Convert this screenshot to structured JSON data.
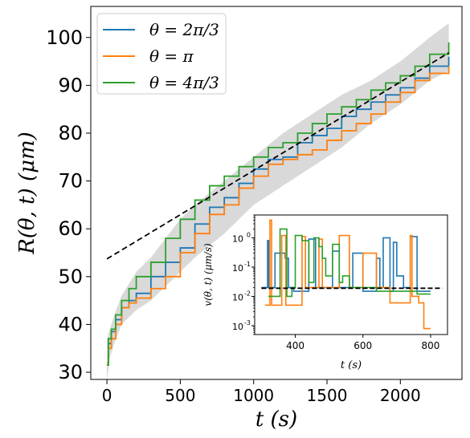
{
  "chart_data": [
    {
      "type": "line",
      "role": "main",
      "xlabel": "t   (s)",
      "ylabel": "R(θ, t)   (μm)",
      "xlim": [
        -110,
        2420
      ],
      "ylim": [
        28.5,
        106.5
      ],
      "xticks": [
        0,
        500,
        1000,
        1500,
        2000
      ],
      "yticks": [
        30,
        40,
        50,
        60,
        70,
        80,
        90,
        100
      ],
      "xtick_labels": [
        "0",
        "500",
        "1000",
        "1500",
        "2000"
      ],
      "ytick_labels": [
        "30",
        "40",
        "50",
        "60",
        "70",
        "80",
        "90",
        "100"
      ],
      "legend_position": "top-left",
      "grid": false,
      "band": {
        "color": "#d9d9d9",
        "x": [
          0,
          20,
          50,
          100,
          200,
          300,
          400,
          500,
          600,
          800,
          1000,
          1200,
          1400,
          1600,
          1800,
          2000,
          2200,
          2330
        ],
        "lower": [
          28,
          33,
          36,
          40,
          43,
          45,
          48,
          51,
          54,
          59,
          65,
          69,
          73,
          77,
          82,
          86,
          91,
          93
        ],
        "upper": [
          37,
          39,
          42,
          46,
          51,
          54,
          58,
          62,
          65,
          70,
          75,
          80,
          84,
          88,
          91,
          95,
          100,
          103
        ]
      },
      "reference_line": {
        "style": "dashed",
        "color": "#000000",
        "x": [
          0,
          2330
        ],
        "y": [
          53.7,
          96.8
        ]
      },
      "series": [
        {
          "name": "θ = 2π/3",
          "color": "#1f77b4",
          "x": [
            0,
            10,
            30,
            60,
            100,
            150,
            200,
            300,
            400,
            500,
            600,
            700,
            800,
            900,
            1000,
            1100,
            1200,
            1300,
            1400,
            1500,
            1600,
            1700,
            1800,
            1900,
            2000,
            2100,
            2200,
            2330
          ],
          "y": [
            31.5,
            36,
            38.5,
            41,
            43.5,
            45,
            46.5,
            50,
            53,
            56,
            61,
            64.5,
            66.5,
            69.5,
            72.5,
            74.5,
            75,
            78,
            79.5,
            81,
            83.5,
            85,
            86.5,
            88,
            89.5,
            91.5,
            94,
            96
          ]
        },
        {
          "name": "θ = π",
          "color": "#ff7f0e",
          "x": [
            0,
            10,
            30,
            60,
            100,
            150,
            200,
            300,
            400,
            500,
            600,
            700,
            800,
            900,
            1000,
            1100,
            1200,
            1300,
            1400,
            1500,
            1600,
            1700,
            1800,
            1900,
            2000,
            2100,
            2200,
            2330
          ],
          "y": [
            32,
            35,
            37,
            40,
            43.5,
            44.5,
            45.5,
            47.5,
            50,
            55,
            59,
            63,
            65,
            68.5,
            71,
            73.5,
            74.5,
            75.5,
            76.5,
            78.5,
            80.5,
            82,
            84,
            86.5,
            88.5,
            91,
            92.5,
            94
          ]
        },
        {
          "name": "θ = 4π/3",
          "color": "#2ca02c",
          "x": [
            0,
            10,
            30,
            60,
            100,
            150,
            200,
            300,
            400,
            500,
            600,
            700,
            800,
            900,
            1000,
            1100,
            1200,
            1300,
            1400,
            1500,
            1600,
            1700,
            1800,
            1900,
            2000,
            2100,
            2200,
            2330
          ],
          "y": [
            31.5,
            37,
            39,
            42,
            45,
            47.5,
            50,
            53,
            58,
            62,
            66,
            69,
            71,
            73,
            75,
            77,
            78,
            80,
            82,
            84,
            85.5,
            87,
            89,
            90.5,
            92,
            94,
            96.5,
            99
          ]
        }
      ]
    },
    {
      "type": "line",
      "role": "inset",
      "xlabel": "t   (s)",
      "ylabel": "v(θ, t)   (μm/s)",
      "log_y": true,
      "xlim": [
        280,
        850
      ],
      "ylim": [
        0.0005,
        6
      ],
      "xticks": [
        400,
        600,
        800
      ],
      "xtick_labels": [
        "400",
        "600",
        "800"
      ],
      "yticks": [
        0.001,
        0.01,
        0.1,
        1
      ],
      "ytick_labels": [
        "10",
        "10",
        "10",
        "10"
      ],
      "ytick_exponents": [
        "-3",
        "-2",
        "-1",
        "0"
      ],
      "reference_line": {
        "style": "dashed",
        "color": "#000000",
        "x": [
          300,
          835
        ],
        "y": [
          0.019,
          0.019
        ]
      },
      "series": [
        {
          "name": "θ = 2π/3",
          "color": "#1f77b4",
          "x": [
            300,
            318,
            322,
            330,
            340,
            370,
            380,
            395,
            420,
            440,
            460,
            470,
            500,
            510,
            530,
            560,
            570,
            600,
            620,
            640,
            650,
            660,
            680,
            690,
            700,
            720,
            740,
            760,
            780,
            800
          ],
          "y": [
            0.02,
            0.8,
            0.02,
            0.02,
            0.3,
            0.2,
            0.02,
            0.015,
            0.015,
            0.9,
            0.02,
            0.02,
            0.02,
            0.35,
            0.02,
            0.02,
            0.3,
            0.015,
            0.015,
            0.2,
            0.02,
            1.0,
            0.015,
            0.7,
            0.05,
            0.02,
            1.1,
            0.015,
            0.015,
            0.015
          ]
        },
        {
          "name": "θ = π",
          "color": "#ff7f0e",
          "x": [
            310,
            320,
            325,
            330,
            355,
            360,
            372,
            378,
            395,
            420,
            430,
            440,
            470,
            480,
            500,
            530,
            560,
            575,
            600,
            640,
            660,
            680,
            700,
            730,
            740,
            745,
            765,
            780,
            800
          ],
          "y": [
            0.005,
            0.005,
            4.0,
            0.005,
            0.005,
            1.2,
            0.005,
            0.005,
            0.005,
            1.1,
            0.02,
            0.02,
            0.9,
            0.02,
            0.02,
            1.2,
            0.02,
            0.02,
            0.3,
            0.02,
            0.02,
            0.006,
            0.006,
            0.006,
            1.2,
            0.01,
            0.006,
            0.0008,
            0.0008
          ]
        },
        {
          "name": "θ = 4π/3",
          "color": "#2ca02c",
          "x": [
            320,
            330,
            345,
            355,
            375,
            390,
            400,
            420,
            440,
            455,
            470,
            480,
            490,
            510,
            530,
            540,
            560,
            580,
            600,
            620,
            640,
            680,
            720,
            760,
            800
          ],
          "y": [
            0.01,
            0.01,
            0.01,
            2.0,
            0.01,
            0.02,
            1.2,
            0.8,
            0.03,
            1.0,
            0.5,
            0.2,
            0.05,
            0.6,
            0.03,
            0.05,
            0.02,
            0.02,
            0.02,
            0.02,
            0.015,
            0.015,
            0.015,
            0.012,
            0.012
          ]
        }
      ]
    }
  ]
}
